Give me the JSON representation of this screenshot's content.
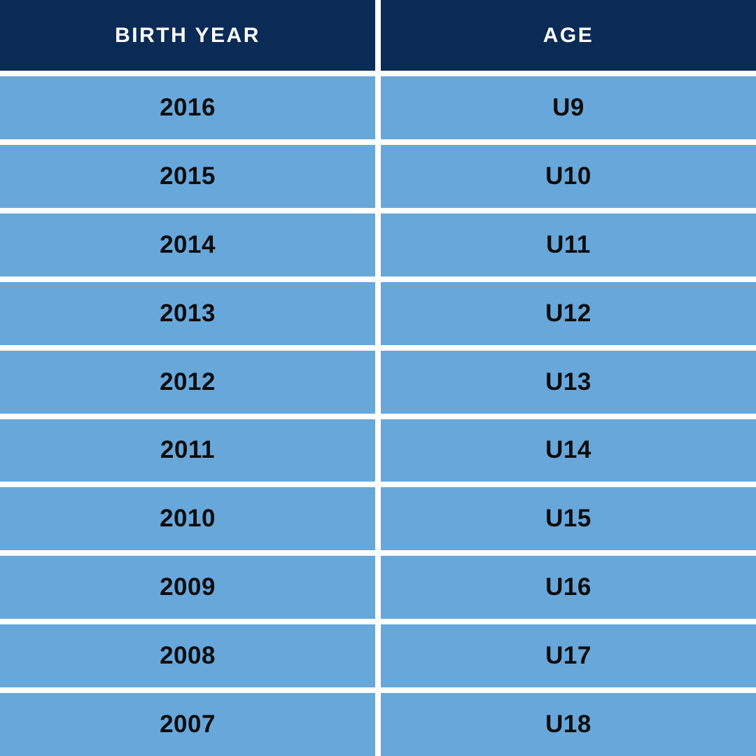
{
  "table": {
    "columns": [
      {
        "label": "BIRTH YEAR"
      },
      {
        "label": "AGE"
      }
    ],
    "rows": [
      {
        "birth_year": "2016",
        "age": "U9"
      },
      {
        "birth_year": "2015",
        "age": "U10"
      },
      {
        "birth_year": "2014",
        "age": "U11"
      },
      {
        "birth_year": "2013",
        "age": "U12"
      },
      {
        "birth_year": "2012",
        "age": "U13"
      },
      {
        "birth_year": "2011",
        "age": "U14"
      },
      {
        "birth_year": "2010",
        "age": "U15"
      },
      {
        "birth_year": "2009",
        "age": "U16"
      },
      {
        "birth_year": "2008",
        "age": "U17"
      },
      {
        "birth_year": "2007",
        "age": "U18"
      }
    ]
  },
  "colors": {
    "header_bg": "#0b2b57",
    "header_text": "#ffffff",
    "row_bg": "#68a7da",
    "row_text": "#0d0d0d",
    "gap": "#ffffff"
  }
}
